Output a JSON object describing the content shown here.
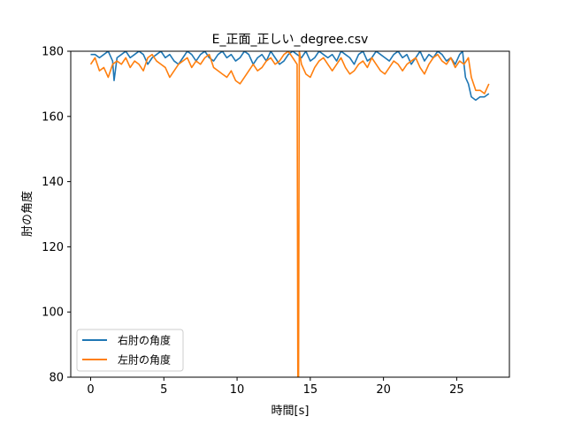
{
  "chart_data": {
    "type": "line",
    "title": "E_正面_正しい_degree.csv",
    "xlabel": "時間[s]",
    "ylabel": "肘の角度",
    "xlim": [
      -1.36,
      28.6
    ],
    "ylim": [
      80,
      180
    ],
    "xticks": [
      0,
      5,
      10,
      15,
      20,
      25
    ],
    "yticks": [
      80,
      100,
      120,
      140,
      160,
      180
    ],
    "grid": false,
    "legend_position": "lower-left",
    "series": [
      {
        "name": "右肘の角度",
        "color": "#1f77b4",
        "x": [
          0.0,
          0.3,
          0.6,
          0.9,
          1.2,
          1.5,
          1.6,
          1.8,
          2.1,
          2.4,
          2.7,
          3.0,
          3.3,
          3.6,
          3.9,
          4.2,
          4.5,
          4.8,
          5.1,
          5.4,
          5.7,
          6.0,
          6.3,
          6.6,
          6.9,
          7.2,
          7.5,
          7.8,
          8.1,
          8.4,
          8.7,
          9.0,
          9.3,
          9.6,
          9.9,
          10.2,
          10.5,
          10.8,
          11.1,
          11.4,
          11.7,
          12.0,
          12.3,
          12.6,
          12.9,
          13.2,
          13.5,
          13.8,
          14.1,
          14.4,
          14.7,
          15.0,
          15.3,
          15.6,
          15.9,
          16.2,
          16.5,
          16.8,
          17.1,
          17.4,
          17.7,
          18.0,
          18.3,
          18.6,
          18.9,
          19.2,
          19.5,
          19.8,
          20.1,
          20.4,
          20.7,
          21.0,
          21.3,
          21.6,
          21.9,
          22.2,
          22.5,
          22.8,
          23.1,
          23.4,
          23.7,
          24.0,
          24.3,
          24.6,
          24.9,
          25.2,
          25.4,
          25.6,
          25.8,
          26.0,
          26.3,
          26.6,
          26.9,
          27.2
        ],
        "y": [
          179,
          179,
          178,
          179,
          180,
          177,
          171,
          178,
          179,
          180,
          178,
          179,
          180,
          179,
          176,
          178,
          179,
          180,
          178,
          179,
          177,
          176,
          178,
          180,
          179,
          177,
          179,
          180,
          178,
          177,
          179,
          180,
          178,
          179,
          177,
          178,
          180,
          179,
          176,
          178,
          179,
          177,
          180,
          178,
          176,
          177,
          179,
          180,
          179,
          178,
          180,
          177,
          178,
          180,
          179,
          178,
          179,
          177,
          180,
          179,
          178,
          176,
          179,
          180,
          177,
          178,
          180,
          179,
          178,
          177,
          179,
          180,
          178,
          179,
          176,
          178,
          180,
          177,
          179,
          178,
          180,
          179,
          177,
          178,
          176,
          179,
          180,
          172,
          170,
          166,
          165,
          166,
          166,
          167
        ]
      },
      {
        "name": "左肘の角度",
        "color": "#ff7f0e",
        "x": [
          0.0,
          0.3,
          0.6,
          0.9,
          1.2,
          1.5,
          1.8,
          2.1,
          2.4,
          2.7,
          3.0,
          3.3,
          3.6,
          3.9,
          4.2,
          4.5,
          4.8,
          5.1,
          5.4,
          5.7,
          6.0,
          6.3,
          6.6,
          6.9,
          7.2,
          7.5,
          7.8,
          8.1,
          8.4,
          8.7,
          9.0,
          9.3,
          9.6,
          9.9,
          10.2,
          10.5,
          10.8,
          11.1,
          11.4,
          11.7,
          12.0,
          12.3,
          12.6,
          12.9,
          13.2,
          13.5,
          13.8,
          14.1,
          14.15,
          14.2,
          14.25,
          14.4,
          14.7,
          15.0,
          15.3,
          15.6,
          15.9,
          16.2,
          16.5,
          16.8,
          17.1,
          17.4,
          17.7,
          18.0,
          18.3,
          18.6,
          18.9,
          19.2,
          19.5,
          19.8,
          20.1,
          20.4,
          20.7,
          21.0,
          21.3,
          21.6,
          21.9,
          22.2,
          22.5,
          22.8,
          23.1,
          23.4,
          23.7,
          24.0,
          24.3,
          24.6,
          24.9,
          25.2,
          25.5,
          25.8,
          26.0,
          26.3,
          26.6,
          26.9,
          27.2
        ],
        "y": [
          176,
          178,
          174,
          175,
          172,
          176,
          177,
          176,
          178,
          175,
          177,
          176,
          174,
          178,
          179,
          177,
          176,
          175,
          172,
          174,
          176,
          177,
          178,
          175,
          177,
          176,
          178,
          179,
          175,
          174,
          173,
          172,
          174,
          171,
          170,
          172,
          174,
          176,
          174,
          175,
          177,
          178,
          176,
          177,
          179,
          180,
          178,
          176,
          80,
          80,
          180,
          176,
          173,
          172,
          175,
          177,
          178,
          176,
          174,
          176,
          178,
          175,
          173,
          174,
          176,
          177,
          175,
          178,
          176,
          174,
          173,
          175,
          177,
          176,
          174,
          176,
          177,
          178,
          175,
          173,
          176,
          178,
          179,
          177,
          176,
          178,
          175,
          177,
          176,
          178,
          172,
          168,
          168,
          167,
          170
        ]
      }
    ]
  }
}
